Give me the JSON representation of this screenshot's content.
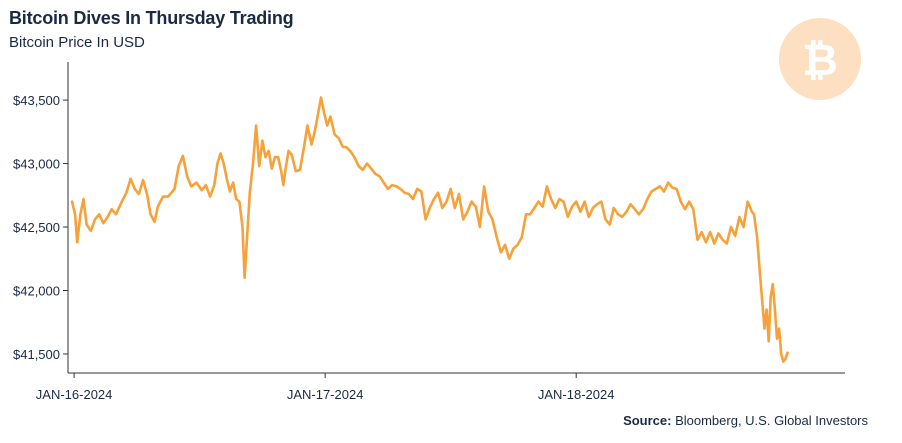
{
  "header": {
    "title": "Bitcoin Dives In Thursday Trading",
    "subtitle": "Bitcoin Price In USD"
  },
  "logo": {
    "icon": "bitcoin-icon",
    "glyph": "₿",
    "color": "#fde0c2"
  },
  "source": {
    "label": "Source:",
    "text": " Bloomberg, U.S. Global Investors"
  },
  "colors": {
    "line": "#f7a13a",
    "axis": "#333333",
    "text": "#1b2a44"
  },
  "chart_data": {
    "type": "line",
    "title": "Bitcoin Dives In Thursday Trading",
    "subtitle": "Bitcoin Price In USD",
    "xlabel": "",
    "ylabel": "",
    "ylim": [
      41350,
      43800
    ],
    "y_ticks": [
      41500,
      42000,
      42500,
      43000,
      43500
    ],
    "y_tick_labels": [
      "$41,500",
      "$42,000",
      "$42,500",
      "$43,000",
      "$43,500"
    ],
    "x_ticks": [
      0,
      24,
      48
    ],
    "x_tick_labels": [
      "JAN-16-2024",
      "JAN-17-2024",
      "JAN-18-2024"
    ],
    "x_unit": "hours since Jan-16-2024 00:00",
    "xlim": [
      -0.2,
      71.5
    ],
    "grid": false,
    "legend": "none",
    "series": [
      {
        "values": [
          [
            -0.2,
            42700
          ],
          [
            0.1,
            42600
          ],
          [
            0.3,
            42380
          ],
          [
            0.6,
            42600
          ],
          [
            0.9,
            42720
          ],
          [
            1.2,
            42520
          ],
          [
            1.6,
            42470
          ],
          [
            2.0,
            42560
          ],
          [
            2.4,
            42600
          ],
          [
            2.8,
            42530
          ],
          [
            3.2,
            42580
          ],
          [
            3.6,
            42640
          ],
          [
            4.0,
            42600
          ],
          [
            4.5,
            42690
          ],
          [
            5.0,
            42770
          ],
          [
            5.4,
            42880
          ],
          [
            5.8,
            42800
          ],
          [
            6.2,
            42760
          ],
          [
            6.6,
            42870
          ],
          [
            7.0,
            42750
          ],
          [
            7.3,
            42600
          ],
          [
            7.7,
            42540
          ],
          [
            8.0,
            42660
          ],
          [
            8.5,
            42740
          ],
          [
            9.0,
            42740
          ],
          [
            9.6,
            42800
          ],
          [
            10.0,
            42980
          ],
          [
            10.4,
            43060
          ],
          [
            10.8,
            42900
          ],
          [
            11.2,
            42820
          ],
          [
            11.7,
            42850
          ],
          [
            12.2,
            42790
          ],
          [
            12.6,
            42830
          ],
          [
            13.0,
            42740
          ],
          [
            13.4,
            42830
          ],
          [
            13.7,
            43000
          ],
          [
            14.0,
            43080
          ],
          [
            14.3,
            43000
          ],
          [
            14.6,
            42880
          ],
          [
            14.9,
            42780
          ],
          [
            15.2,
            42850
          ],
          [
            15.5,
            42720
          ],
          [
            15.8,
            42700
          ],
          [
            16.1,
            42500
          ],
          [
            16.3,
            42100
          ],
          [
            16.5,
            42370
          ],
          [
            16.8,
            42770
          ],
          [
            17.1,
            43000
          ],
          [
            17.4,
            43300
          ],
          [
            17.7,
            42980
          ],
          [
            18.0,
            43180
          ],
          [
            18.3,
            43050
          ],
          [
            18.6,
            43100
          ],
          [
            18.9,
            42960
          ],
          [
            19.2,
            43050
          ],
          [
            19.5,
            43050
          ],
          [
            19.8,
            42940
          ],
          [
            20.0,
            42830
          ],
          [
            20.2,
            42950
          ],
          [
            20.5,
            43100
          ],
          [
            20.8,
            43070
          ],
          [
            21.2,
            42940
          ],
          [
            21.6,
            42950
          ],
          [
            22.0,
            43140
          ],
          [
            22.3,
            43300
          ],
          [
            22.7,
            43150
          ],
          [
            23.0,
            43250
          ],
          [
            23.3,
            43380
          ],
          [
            23.6,
            43520
          ],
          [
            23.9,
            43400
          ],
          [
            24.2,
            43300
          ],
          [
            24.5,
            43370
          ],
          [
            24.9,
            43230
          ],
          [
            25.3,
            43200
          ],
          [
            25.7,
            43130
          ],
          [
            26.0,
            43130
          ],
          [
            26.4,
            43100
          ],
          [
            26.8,
            43050
          ],
          [
            27.2,
            42980
          ],
          [
            27.6,
            42950
          ],
          [
            28.0,
            43000
          ],
          [
            28.4,
            42960
          ],
          [
            28.8,
            42920
          ],
          [
            29.2,
            42900
          ],
          [
            29.6,
            42850
          ],
          [
            30.0,
            42800
          ],
          [
            30.4,
            42830
          ],
          [
            30.8,
            42820
          ],
          [
            31.2,
            42800
          ],
          [
            31.6,
            42770
          ],
          [
            32.0,
            42760
          ],
          [
            32.4,
            42720
          ],
          [
            32.8,
            42800
          ],
          [
            33.2,
            42780
          ],
          [
            33.6,
            42560
          ],
          [
            34.0,
            42650
          ],
          [
            34.4,
            42720
          ],
          [
            34.8,
            42770
          ],
          [
            35.2,
            42650
          ],
          [
            35.6,
            42700
          ],
          [
            36.0,
            42800
          ],
          [
            36.4,
            42650
          ],
          [
            36.8,
            42760
          ],
          [
            37.2,
            42560
          ],
          [
            37.6,
            42620
          ],
          [
            38.0,
            42700
          ],
          [
            38.4,
            42660
          ],
          [
            38.8,
            42500
          ],
          [
            39.2,
            42820
          ],
          [
            39.6,
            42620
          ],
          [
            40.0,
            42560
          ],
          [
            40.4,
            42420
          ],
          [
            40.8,
            42300
          ],
          [
            41.2,
            42360
          ],
          [
            41.6,
            42250
          ],
          [
            42.0,
            42330
          ],
          [
            42.4,
            42360
          ],
          [
            42.8,
            42420
          ],
          [
            43.2,
            42600
          ],
          [
            43.6,
            42600
          ],
          [
            44.0,
            42650
          ],
          [
            44.4,
            42700
          ],
          [
            44.8,
            42660
          ],
          [
            45.2,
            42820
          ],
          [
            45.6,
            42720
          ],
          [
            46.0,
            42650
          ],
          [
            46.4,
            42720
          ],
          [
            46.8,
            42700
          ],
          [
            47.2,
            42580
          ],
          [
            47.6,
            42660
          ],
          [
            48.0,
            42700
          ],
          [
            48.4,
            42620
          ],
          [
            48.8,
            42700
          ],
          [
            49.2,
            42580
          ],
          [
            49.6,
            42650
          ],
          [
            50.0,
            42680
          ],
          [
            50.4,
            42700
          ],
          [
            50.8,
            42560
          ],
          [
            51.2,
            42520
          ],
          [
            51.6,
            42650
          ],
          [
            52.0,
            42600
          ],
          [
            52.4,
            42580
          ],
          [
            52.8,
            42620
          ],
          [
            53.2,
            42680
          ],
          [
            53.6,
            42640
          ],
          [
            54.0,
            42600
          ],
          [
            54.4,
            42640
          ],
          [
            54.8,
            42720
          ],
          [
            55.2,
            42780
          ],
          [
            55.6,
            42800
          ],
          [
            56.0,
            42820
          ],
          [
            56.4,
            42780
          ],
          [
            56.8,
            42850
          ],
          [
            57.2,
            42810
          ],
          [
            57.6,
            42800
          ],
          [
            58.0,
            42700
          ],
          [
            58.4,
            42640
          ],
          [
            58.8,
            42700
          ],
          [
            59.2,
            42640
          ],
          [
            59.6,
            42400
          ],
          [
            60.0,
            42460
          ],
          [
            60.4,
            42380
          ],
          [
            60.8,
            42460
          ],
          [
            61.2,
            42370
          ],
          [
            61.6,
            42450
          ],
          [
            62.0,
            42400
          ],
          [
            62.4,
            42370
          ],
          [
            62.8,
            42500
          ],
          [
            63.2,
            42430
          ],
          [
            63.6,
            42580
          ],
          [
            64.0,
            42500
          ],
          [
            64.4,
            42700
          ],
          [
            64.8,
            42620
          ],
          [
            65.0,
            42600
          ],
          [
            65.3,
            42420
          ],
          [
            65.6,
            42100
          ],
          [
            65.8,
            41900
          ],
          [
            66.0,
            41700
          ],
          [
            66.2,
            41850
          ],
          [
            66.4,
            41600
          ],
          [
            66.6,
            41950
          ],
          [
            66.8,
            42050
          ],
          [
            67.0,
            41850
          ],
          [
            67.2,
            41620
          ],
          [
            67.4,
            41700
          ],
          [
            67.6,
            41500
          ],
          [
            67.8,
            41440
          ],
          [
            68.0,
            41460
          ],
          [
            68.2,
            41510
          ]
        ]
      }
    ]
  }
}
